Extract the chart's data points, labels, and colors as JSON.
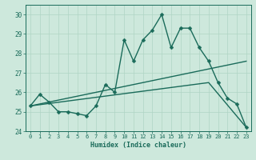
{
  "xlabel": "Humidex (Indice chaleur)",
  "ylabel": "",
  "bg_color": "#cde8dc",
  "line_color": "#1a6b5a",
  "grid_color": "#b0d4c4",
  "xlim": [
    -0.5,
    23.5
  ],
  "ylim": [
    24,
    30.5
  ],
  "xticks": [
    0,
    1,
    2,
    3,
    4,
    5,
    6,
    7,
    8,
    9,
    10,
    11,
    12,
    13,
    14,
    15,
    16,
    17,
    18,
    19,
    20,
    21,
    22,
    23
  ],
  "yticks": [
    24,
    25,
    26,
    27,
    28,
    29,
    30
  ],
  "line1_x": [
    0,
    1,
    2,
    3,
    4,
    5,
    6,
    7,
    8,
    9,
    10,
    11,
    12,
    13,
    14,
    15,
    16,
    17,
    18,
    19,
    20,
    21,
    22,
    23
  ],
  "line1_y": [
    25.3,
    25.9,
    25.5,
    25.0,
    25.0,
    24.9,
    24.8,
    25.3,
    26.4,
    26.0,
    28.7,
    27.6,
    28.7,
    29.2,
    30.0,
    28.3,
    29.3,
    29.3,
    28.3,
    27.6,
    26.5,
    25.7,
    25.4,
    24.2
  ],
  "line2_x": [
    0,
    23
  ],
  "line2_y": [
    25.3,
    27.6
  ],
  "line3_x": [
    0,
    19,
    23
  ],
  "line3_y": [
    25.3,
    26.5,
    24.2
  ],
  "markersize": 2.5,
  "linewidth": 1.0
}
